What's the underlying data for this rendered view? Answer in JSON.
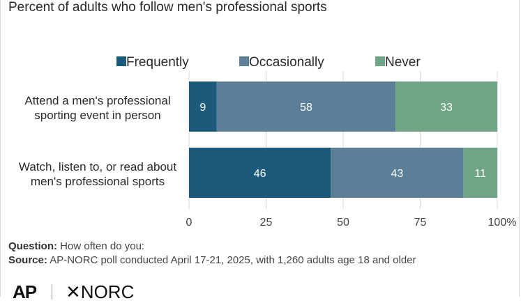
{
  "title": "Percent of adults who follow men's professional sports",
  "chart_data": {
    "type": "bar",
    "orientation": "horizontal",
    "stacked": true,
    "categories": [
      [
        "Attend a men's professional",
        "sporting event in person"
      ],
      [
        "Watch, listen to, or read about",
        "men's professional sports"
      ]
    ],
    "series": [
      {
        "name": "Frequently",
        "color": "#1b5a7a",
        "values": [
          9,
          46
        ]
      },
      {
        "name": "Occasionally",
        "color": "#5b7f96",
        "values": [
          58,
          43
        ]
      },
      {
        "name": "Never",
        "color": "#6fa487",
        "values": [
          33,
          11
        ]
      }
    ],
    "xlim": [
      0,
      100
    ],
    "xticks": [
      "0",
      "25",
      "50",
      "75",
      "100%"
    ],
    "xtick_values": [
      0,
      25,
      50,
      75,
      100
    ],
    "legend_position": "top",
    "grid": true
  },
  "footer": {
    "question_label": "Question:",
    "question_text": "How often do you:",
    "source_label": "Source:",
    "source_text": "AP-NORC poll conducted April 17-21, 2025, with 1,260 adults age 18 and older"
  },
  "logos": {
    "ap": "AP",
    "norc": "NORC"
  }
}
